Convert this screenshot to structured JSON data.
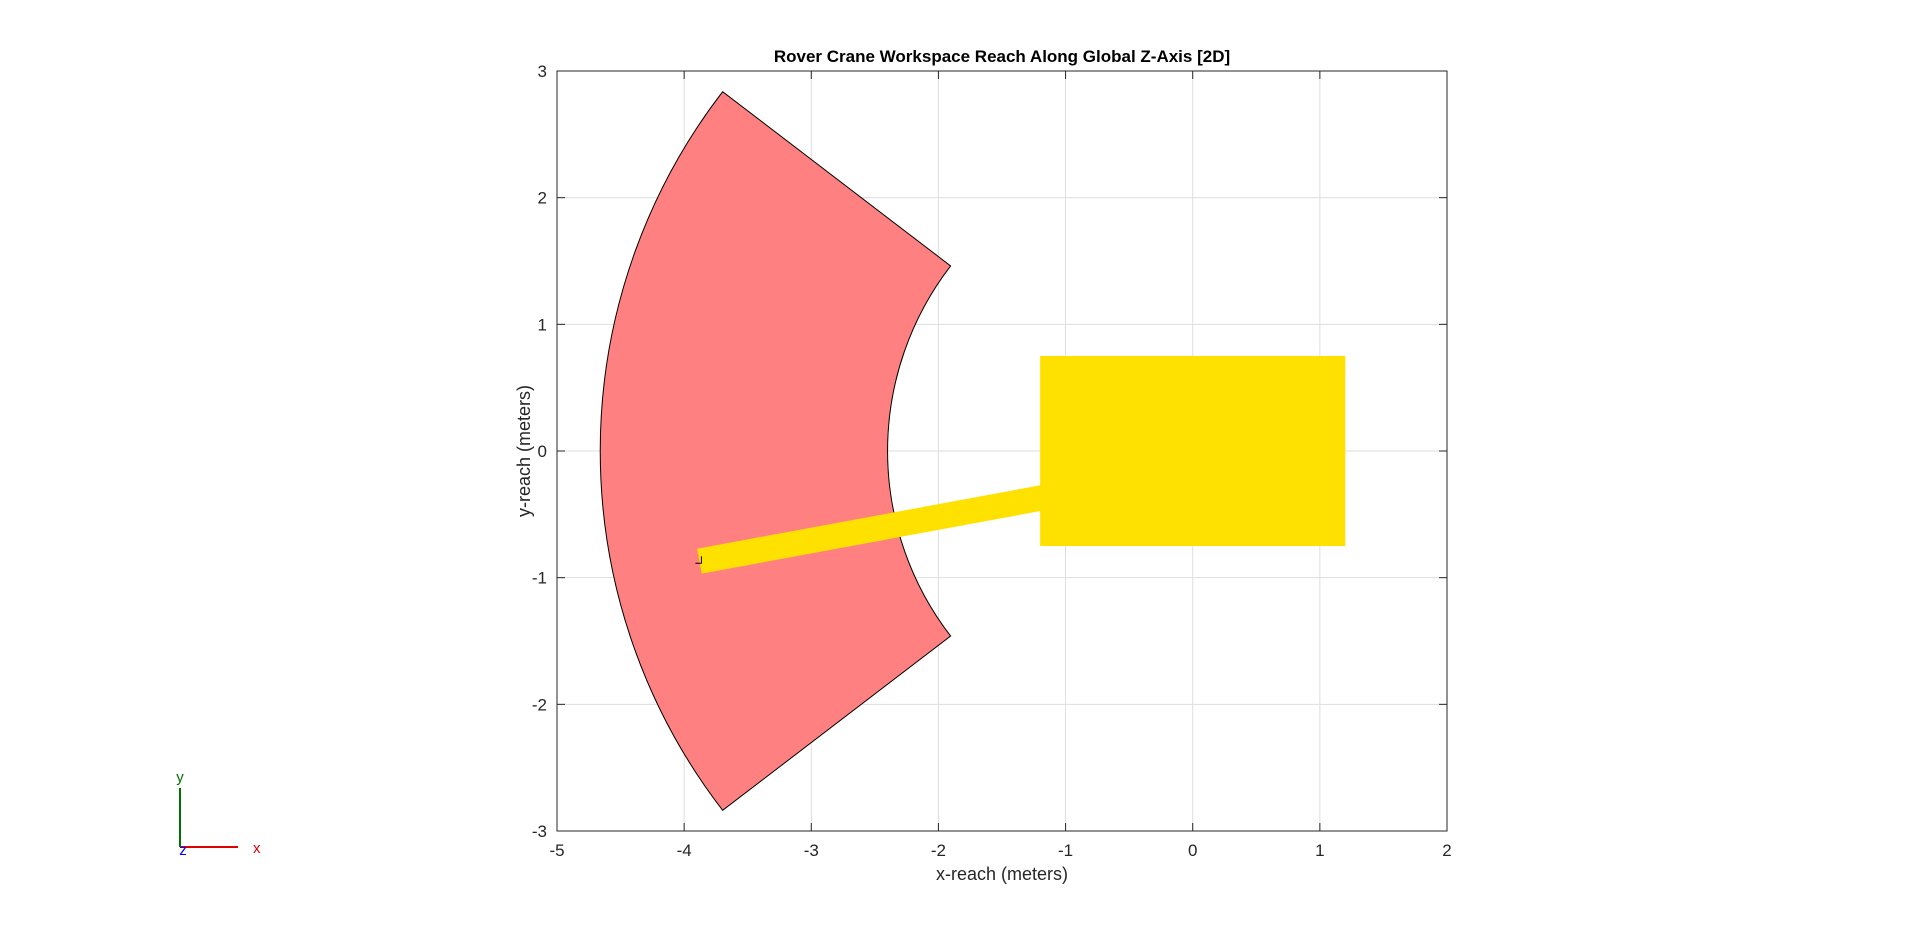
{
  "chart_data": {
    "type": "area",
    "title": "Rover Crane Workspace Reach Along Global Z-Axis [2D]",
    "xlabel": "x-reach (meters)",
    "ylabel": "y-reach (meters)",
    "xlim": [
      -5,
      2
    ],
    "ylim": [
      -3,
      3
    ],
    "xticks": [
      -5,
      -4,
      -3,
      -2,
      -1,
      0,
      1,
      2
    ],
    "yticks": [
      -3,
      -2,
      -1,
      0,
      1,
      2,
      3
    ],
    "grid": true,
    "colors": {
      "workspace": "#ff8080",
      "rover": "#ffe100",
      "boom": "#ffe100"
    },
    "workspace": {
      "center": [
        0,
        0
      ],
      "inner_radius": 2.4,
      "outer_radius": 4.66,
      "start_angle_deg": 142.5,
      "end_angle_deg": 217.5
    },
    "rover_body": {
      "x": [
        -1.2,
        1.2
      ],
      "y": [
        -0.75,
        0.75
      ]
    },
    "boom": {
      "start": [
        0.0,
        -0.15
      ],
      "end": [
        -3.88,
        -0.87
      ],
      "width": 0.2
    }
  },
  "triad": {
    "x_label": "x",
    "y_label": "y",
    "z_label": "z",
    "x_color": "#ff0000",
    "y_color": "#008000",
    "z_color": "#0000ff"
  }
}
